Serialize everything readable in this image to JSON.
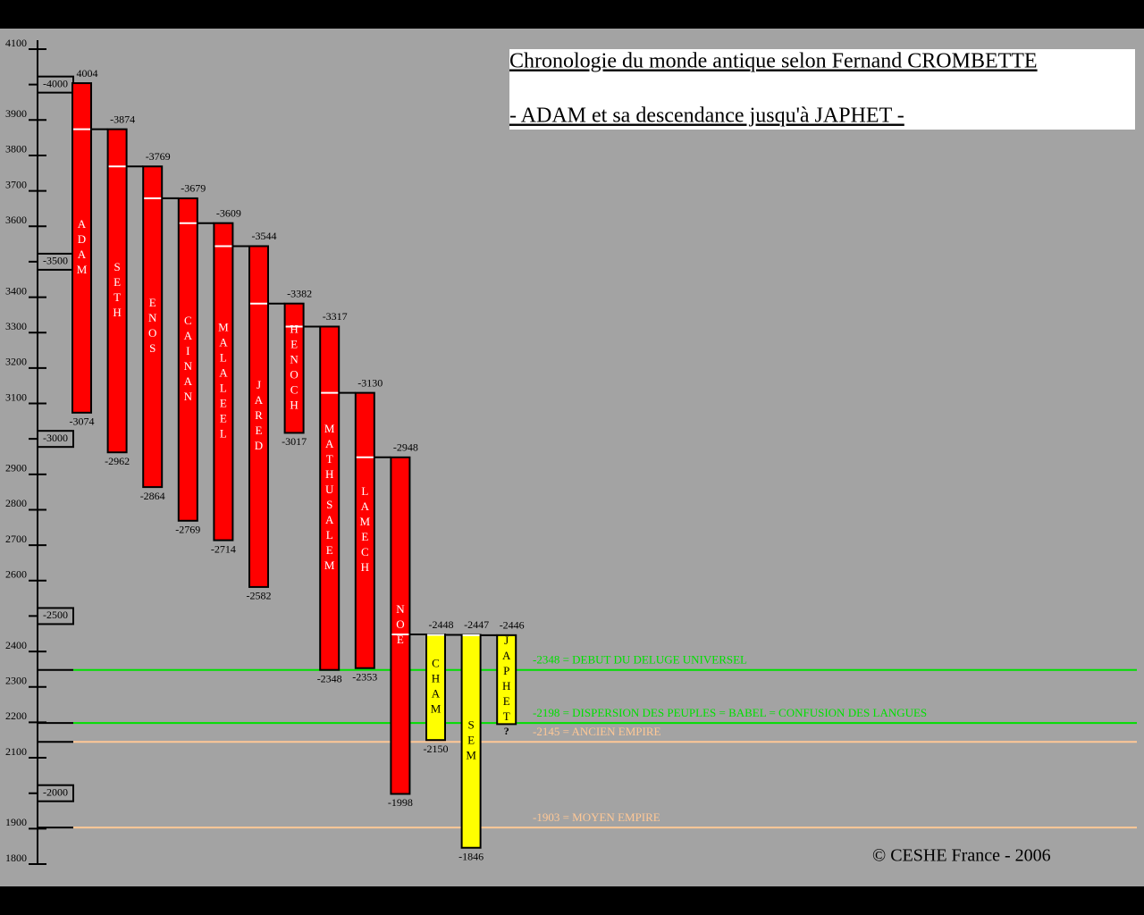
{
  "chart_data": {
    "type": "bar",
    "title": "Chronologie du monde antique selon Fernand CROMBETTE",
    "subtitle": "- ADAM et sa descendance jusqu'à JAPHET -",
    "copyright": "© CESHE  France - 2006",
    "ylim": [
      1800,
      4100
    ],
    "yticks": [
      4100,
      {
        "value": 4000,
        "label": "-4000"
      },
      3900,
      3800,
      3700,
      3600,
      {
        "value": 3500,
        "label": "-3500"
      },
      3400,
      3300,
      3200,
      3100,
      {
        "value": 3000,
        "label": "-3000"
      },
      2900,
      2800,
      2700,
      2600,
      {
        "value": 2500,
        "label": "-2500"
      },
      2400,
      2300,
      2200,
      2100,
      {
        "value": 2000,
        "label": "-2000"
      },
      1900,
      1800
    ],
    "bars": [
      {
        "name": "ADAM",
        "color": "#ff0000",
        "start": 4004,
        "end": 3074,
        "start_label": "4004",
        "end_label": "-3074"
      },
      {
        "name": "SETH",
        "color": "#ff0000",
        "start": 3874,
        "end": 2962,
        "start_label": "-3874",
        "end_label": "-2962"
      },
      {
        "name": "ENOS",
        "color": "#ff0000",
        "start": 3769,
        "end": 2864,
        "start_label": "-3769",
        "end_label": "-2864"
      },
      {
        "name": "CAINAN",
        "color": "#ff0000",
        "start": 3679,
        "end": 2769,
        "start_label": "-3679",
        "end_label": "-2769"
      },
      {
        "name": "MALALEEL",
        "color": "#ff0000",
        "start": 3609,
        "end": 2714,
        "start_label": "-3609",
        "end_label": "-2714"
      },
      {
        "name": "JARED",
        "color": "#ff0000",
        "start": 3544,
        "end": 2582,
        "start_label": "-3544",
        "end_label": "-2582"
      },
      {
        "name": "HENOCH",
        "color": "#ff0000",
        "start": 3382,
        "end": 3017,
        "start_label": "-3382",
        "end_label": "-3017"
      },
      {
        "name": "MATHUSALEM",
        "color": "#ff0000",
        "start": 3317,
        "end": 2348,
        "start_label": "-3317",
        "end_label": "-2348"
      },
      {
        "name": "LAMECH",
        "color": "#ff0000",
        "start": 3130,
        "end": 2353,
        "start_label": "-3130",
        "end_label": "-2353"
      },
      {
        "name": "NOE",
        "color": "#ff0000",
        "start": 2948,
        "end": 1998,
        "start_label": "-2948",
        "end_label": "-1998"
      },
      {
        "name": "CHAM",
        "color": "#ffff00",
        "start": 2448,
        "end": 2150,
        "start_label": "-2448",
        "end_label": "-2150"
      },
      {
        "name": "SEM",
        "color": "#ffff00",
        "start": 2447,
        "end": 1846,
        "start_label": "-2447",
        "end_label": "-1846"
      },
      {
        "name": "JAPHET",
        "color": "#ffff00",
        "start": 2446,
        "end": 2195,
        "start_label": "-2446",
        "note": "?"
      }
    ],
    "reference_lines": [
      {
        "value": 2348,
        "text": "-2348 = DEBUT DU DELUGE UNIVERSEL",
        "color": "#00e000"
      },
      {
        "value": 2198,
        "text": "-2198 = DISPERSION DES PEUPLES = BABEL = CONFUSION DES LANGUES",
        "color": "#00e000"
      },
      {
        "value": 2145,
        "text": "-2145 = ANCIEN EMPIRE",
        "color": "#ffc896"
      },
      {
        "value": 1903,
        "text": "-1903 = MOYEN EMPIRE",
        "color": "#ffc896"
      }
    ]
  }
}
